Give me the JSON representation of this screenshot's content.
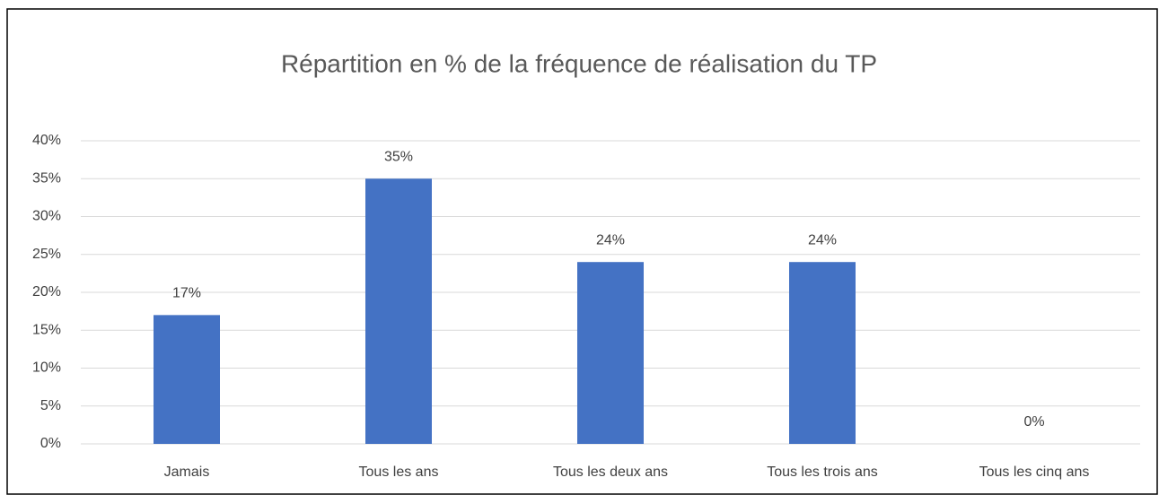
{
  "chart_data": {
    "type": "bar",
    "title": "Répartition en % de la fréquence de réalisation du TP",
    "categories": [
      "Jamais",
      "Tous les ans",
      "Tous les deux ans",
      "Tous les trois ans",
      "Tous les cinq ans"
    ],
    "values": [
      17,
      35,
      24,
      24,
      0
    ],
    "value_labels": [
      "17%",
      "35%",
      "24%",
      "24%",
      "0%"
    ],
    "color": "#4472c4",
    "ylim": [
      0,
      40
    ],
    "yticks": [
      {
        "value": 0,
        "label": "0%"
      },
      {
        "value": 5,
        "label": "5%"
      },
      {
        "value": 10,
        "label": "10%"
      },
      {
        "value": 15,
        "label": "15%"
      },
      {
        "value": 20,
        "label": "20%"
      },
      {
        "value": 25,
        "label": "25%"
      },
      {
        "value": 30,
        "label": "30%"
      },
      {
        "value": 35,
        "label": "35%"
      },
      {
        "value": 40,
        "label": "40%"
      }
    ],
    "grid": true
  }
}
